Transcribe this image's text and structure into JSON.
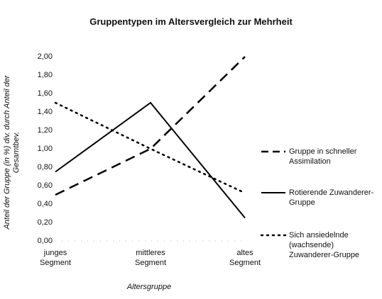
{
  "chart_data": {
    "type": "line",
    "title": "Gruppentypen im Altersvergleich zur Mehrheit",
    "xlabel": "Altersgruppe",
    "ylabel": [
      "Anteil der Gruppe (in %) div. durch Anteil der",
      "Gesamtbev."
    ],
    "categories": [
      "junges Segment",
      "mittleres Segment",
      "altes Segment"
    ],
    "ylim": [
      0,
      2
    ],
    "yticks": [
      {
        "value": 0,
        "label": "0,00"
      },
      {
        "value": 0.2,
        "label": "0,20"
      },
      {
        "value": 0.4,
        "label": "0,40"
      },
      {
        "value": 0.6,
        "label": "0,60"
      },
      {
        "value": 0.8,
        "label": "0,80"
      },
      {
        "value": 1,
        "label": "1,00"
      },
      {
        "value": 1.2,
        "label": "1,20"
      },
      {
        "value": 1.4,
        "label": "1,40"
      },
      {
        "value": 1.6,
        "label": "1,60"
      },
      {
        "value": 1.8,
        "label": "1,80"
      },
      {
        "value": 2,
        "label": "2,00"
      }
    ],
    "grid": false,
    "series": [
      {
        "name": "Gruppe in schneller Assimilation",
        "color": "#000000",
        "dash": "dashed",
        "values": [
          0.5,
          1.0,
          2.0
        ]
      },
      {
        "name": "Rotierende Zuwanderer-Gruppe",
        "color": "#000000",
        "dash": "solid",
        "values": [
          0.75,
          1.5,
          0.25
        ]
      },
      {
        "name": "Sich ansiedelnde (wachsende) Zuwanderer-Gruppe",
        "color": "#000000",
        "dash": "dotted",
        "values": [
          1.5,
          1.0,
          0.52
        ]
      }
    ]
  }
}
